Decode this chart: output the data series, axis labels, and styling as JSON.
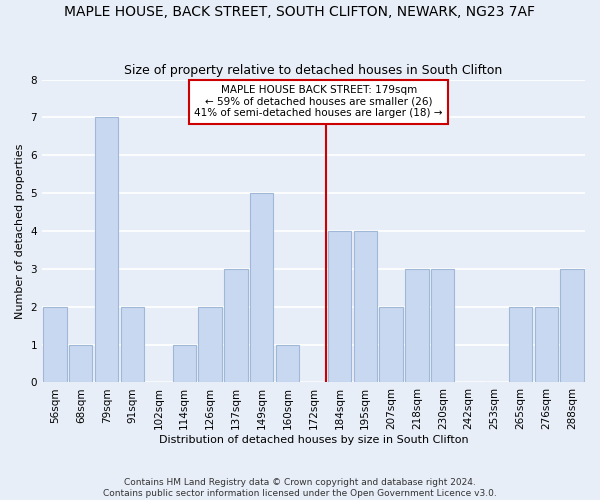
{
  "title": "MAPLE HOUSE, BACK STREET, SOUTH CLIFTON, NEWARK, NG23 7AF",
  "subtitle": "Size of property relative to detached houses in South Clifton",
  "xlabel": "Distribution of detached houses by size in South Clifton",
  "ylabel": "Number of detached properties",
  "footnote1": "Contains HM Land Registry data © Crown copyright and database right 2024.",
  "footnote2": "Contains public sector information licensed under the Open Government Licence v3.0.",
  "bar_labels": [
    "56sqm",
    "68sqm",
    "79sqm",
    "91sqm",
    "102sqm",
    "114sqm",
    "126sqm",
    "137sqm",
    "149sqm",
    "160sqm",
    "172sqm",
    "184sqm",
    "195sqm",
    "207sqm",
    "218sqm",
    "230sqm",
    "242sqm",
    "253sqm",
    "265sqm",
    "276sqm",
    "288sqm"
  ],
  "bar_values": [
    2,
    1,
    7,
    2,
    0,
    1,
    2,
    3,
    5,
    1,
    0,
    4,
    4,
    2,
    3,
    3,
    0,
    0,
    2,
    2,
    3
  ],
  "bar_color": "#c8d8f0",
  "bar_edge_color": "#a0b8d8",
  "reference_line_index": 11,
  "reference_line_label": "MAPLE HOUSE BACK STREET: 179sqm",
  "annotation_line1": "← 59% of detached houses are smaller (26)",
  "annotation_line2": "41% of semi-detached houses are larger (18) →",
  "annotation_box_color": "#ffffff",
  "annotation_box_edge_color": "#cc0000",
  "reference_line_color": "#cc0000",
  "ylim": [
    0,
    8
  ],
  "yticks": [
    0,
    1,
    2,
    3,
    4,
    5,
    6,
    7,
    8
  ],
  "background_color": "#e8eef8",
  "grid_color": "#ffffff",
  "title_fontsize": 10,
  "subtitle_fontsize": 9,
  "axis_label_fontsize": 8,
  "tick_fontsize": 7.5
}
